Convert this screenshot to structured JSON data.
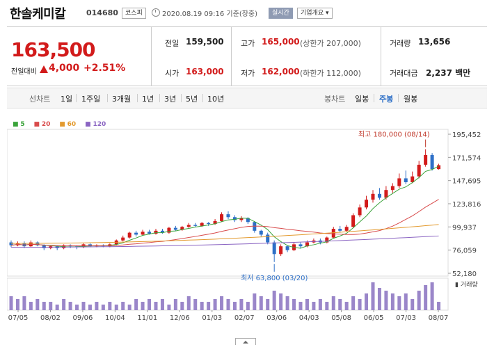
{
  "header": {
    "name": "한솔케미칼",
    "code": "014680",
    "market": "코스피",
    "datetime": "2020.08.19 09:16 기준(장중)",
    "realtime": "실시간",
    "company_info": "기업개요 ▾"
  },
  "price": {
    "current": "163,500",
    "change_label": "전일대비",
    "change": "4,000",
    "change_pct": "+2.51%"
  },
  "stats": {
    "prev_label": "전일",
    "prev": "159,500",
    "high_label": "고가",
    "high": "165,000",
    "upper_limit": "(상한가 207,000)",
    "volume_label": "거래량",
    "volume": "13,656",
    "open_label": "시가",
    "open": "163,000",
    "low_label": "저가",
    "low": "162,000",
    "lower_limit": "(하한가 112,000)",
    "amount_label": "거래대금",
    "amount": "2,237 백만"
  },
  "tabs": {
    "line_chart": "선차트",
    "periods": [
      "1일",
      "1주일",
      "3개월",
      "1년",
      "3년",
      "5년",
      "10년"
    ],
    "candle_chart": "봉차트",
    "candle": [
      "일봉",
      "주봉",
      "월봉"
    ]
  },
  "colors": {
    "up": "#d21b1b",
    "down": "#2d6fc7",
    "ma5": "#3aa33a",
    "ma20": "#d84a4a",
    "ma60": "#e39a2e",
    "ma120": "#8a64c2",
    "volume": "#9a86c9"
  },
  "chart_data": {
    "type": "candlestick",
    "legend": [
      "5",
      "20",
      "60",
      "120"
    ],
    "y_ticks": [
      "195,452",
      "171,574",
      "147,695",
      "123,816",
      "99,937",
      "76,059",
      "52,180"
    ],
    "ylim": [
      52180,
      195452
    ],
    "x_ticks": [
      "07/05",
      "08/02",
      "09/06",
      "10/04",
      "11/01",
      "12/06",
      "01/03",
      "02/07",
      "03/06",
      "04/03",
      "05/08",
      "06/05",
      "07/03",
      "08/07"
    ],
    "high_annotation": "최고 180,000 (08/14)",
    "low_annotation": "최저 63,800 (03/20)",
    "volume_label": "거래량",
    "candles": [
      {
        "o": 84000,
        "c": 81000,
        "h": 86000,
        "l": 79000
      },
      {
        "o": 81000,
        "c": 83000,
        "h": 85000,
        "l": 80000
      },
      {
        "o": 83000,
        "c": 80000,
        "h": 85000,
        "l": 78000
      },
      {
        "o": 80000,
        "c": 84000,
        "h": 86000,
        "l": 79000
      },
      {
        "o": 84000,
        "c": 81000,
        "h": 85000,
        "l": 80000
      },
      {
        "o": 81000,
        "c": 78000,
        "h": 82000,
        "l": 76000
      },
      {
        "o": 78000,
        "c": 80000,
        "h": 81000,
        "l": 77000
      },
      {
        "o": 80000,
        "c": 78000,
        "h": 81000,
        "l": 76000
      },
      {
        "o": 78000,
        "c": 81000,
        "h": 82000,
        "l": 77000
      },
      {
        "o": 81000,
        "c": 80000,
        "h": 82000,
        "l": 78000
      },
      {
        "o": 80000,
        "c": 79000,
        "h": 81000,
        "l": 77000
      },
      {
        "o": 79000,
        "c": 82000,
        "h": 83000,
        "l": 78000
      },
      {
        "o": 82000,
        "c": 80000,
        "h": 83000,
        "l": 79000
      },
      {
        "o": 80000,
        "c": 81000,
        "h": 82000,
        "l": 79000
      },
      {
        "o": 81000,
        "c": 80000,
        "h": 82000,
        "l": 79000
      },
      {
        "o": 80000,
        "c": 82000,
        "h": 83000,
        "l": 79000
      },
      {
        "o": 82000,
        "c": 86000,
        "h": 87000,
        "l": 81000
      },
      {
        "o": 86000,
        "c": 89000,
        "h": 91000,
        "l": 85000
      },
      {
        "o": 89000,
        "c": 94000,
        "h": 95000,
        "l": 88000
      },
      {
        "o": 94000,
        "c": 92000,
        "h": 96000,
        "l": 90000
      },
      {
        "o": 92000,
        "c": 95000,
        "h": 97000,
        "l": 91000
      },
      {
        "o": 95000,
        "c": 93000,
        "h": 97000,
        "l": 92000
      },
      {
        "o": 93000,
        "c": 96000,
        "h": 98000,
        "l": 92000
      },
      {
        "o": 96000,
        "c": 94000,
        "h": 98000,
        "l": 93000
      },
      {
        "o": 94000,
        "c": 99000,
        "h": 100000,
        "l": 93000
      },
      {
        "o": 99000,
        "c": 97000,
        "h": 101000,
        "l": 96000
      },
      {
        "o": 97000,
        "c": 100000,
        "h": 101000,
        "l": 96000
      },
      {
        "o": 100000,
        "c": 102000,
        "h": 104000,
        "l": 99000
      },
      {
        "o": 102000,
        "c": 101000,
        "h": 104000,
        "l": 100000
      },
      {
        "o": 101000,
        "c": 104000,
        "h": 105000,
        "l": 100000
      },
      {
        "o": 104000,
        "c": 103000,
        "h": 105000,
        "l": 101000
      },
      {
        "o": 103000,
        "c": 106000,
        "h": 108000,
        "l": 102000
      },
      {
        "o": 106000,
        "c": 113000,
        "h": 115000,
        "l": 105000
      },
      {
        "o": 113000,
        "c": 110000,
        "h": 116000,
        "l": 108000
      },
      {
        "o": 110000,
        "c": 107000,
        "h": 112000,
        "l": 105000
      },
      {
        "o": 107000,
        "c": 109000,
        "h": 111000,
        "l": 105000
      },
      {
        "o": 109000,
        "c": 105000,
        "h": 110000,
        "l": 103000
      },
      {
        "o": 105000,
        "c": 96000,
        "h": 106000,
        "l": 94000
      },
      {
        "o": 96000,
        "c": 92000,
        "h": 97000,
        "l": 90000
      },
      {
        "o": 92000,
        "c": 84000,
        "h": 94000,
        "l": 82000
      },
      {
        "o": 84000,
        "c": 72000,
        "h": 86000,
        "l": 63800
      },
      {
        "o": 72000,
        "c": 80000,
        "h": 82000,
        "l": 70000
      },
      {
        "o": 80000,
        "c": 76000,
        "h": 81000,
        "l": 74000
      },
      {
        "o": 76000,
        "c": 82000,
        "h": 84000,
        "l": 75000
      },
      {
        "o": 82000,
        "c": 80000,
        "h": 84000,
        "l": 78000
      },
      {
        "o": 80000,
        "c": 84000,
        "h": 86000,
        "l": 79000
      },
      {
        "o": 84000,
        "c": 86000,
        "h": 88000,
        "l": 83000
      },
      {
        "o": 86000,
        "c": 84000,
        "h": 88000,
        "l": 82000
      },
      {
        "o": 84000,
        "c": 89000,
        "h": 90000,
        "l": 83000
      },
      {
        "o": 89000,
        "c": 98000,
        "h": 100000,
        "l": 88000
      },
      {
        "o": 98000,
        "c": 96000,
        "h": 101000,
        "l": 94000
      },
      {
        "o": 96000,
        "c": 100000,
        "h": 102000,
        "l": 95000
      },
      {
        "o": 100000,
        "c": 112000,
        "h": 114000,
        "l": 99000
      },
      {
        "o": 112000,
        "c": 120000,
        "h": 123000,
        "l": 110000
      },
      {
        "o": 120000,
        "c": 128000,
        "h": 132000,
        "l": 118000
      },
      {
        "o": 128000,
        "c": 134000,
        "h": 138000,
        "l": 125000
      },
      {
        "o": 134000,
        "c": 130000,
        "h": 140000,
        "l": 128000
      },
      {
        "o": 130000,
        "c": 138000,
        "h": 142000,
        "l": 128000
      },
      {
        "o": 138000,
        "c": 142000,
        "h": 145000,
        "l": 135000
      },
      {
        "o": 142000,
        "c": 150000,
        "h": 155000,
        "l": 140000
      },
      {
        "o": 150000,
        "c": 146000,
        "h": 158000,
        "l": 144000
      },
      {
        "o": 146000,
        "c": 152000,
        "h": 157000,
        "l": 145000
      },
      {
        "o": 152000,
        "c": 164000,
        "h": 168000,
        "l": 150000
      },
      {
        "o": 164000,
        "c": 174000,
        "h": 180000,
        "l": 162000
      },
      {
        "o": 174000,
        "c": 159500,
        "h": 176000,
        "l": 158000
      },
      {
        "o": 159500,
        "c": 163500,
        "h": 165000,
        "l": 159000
      }
    ],
    "volumes": [
      5,
      4,
      5,
      3,
      4,
      3,
      3,
      2,
      4,
      3,
      2,
      3,
      2,
      3,
      2,
      3,
      2,
      3,
      2,
      4,
      3,
      4,
      3,
      4,
      2,
      4,
      3,
      5,
      4,
      3,
      3,
      4,
      5,
      4,
      3,
      4,
      3,
      6,
      5,
      4,
      7,
      6,
      5,
      4,
      3,
      4,
      3,
      4,
      3,
      5,
      4,
      3,
      5,
      4,
      6,
      10,
      8,
      7,
      6,
      5,
      6,
      4,
      7,
      9,
      10,
      3
    ]
  }
}
